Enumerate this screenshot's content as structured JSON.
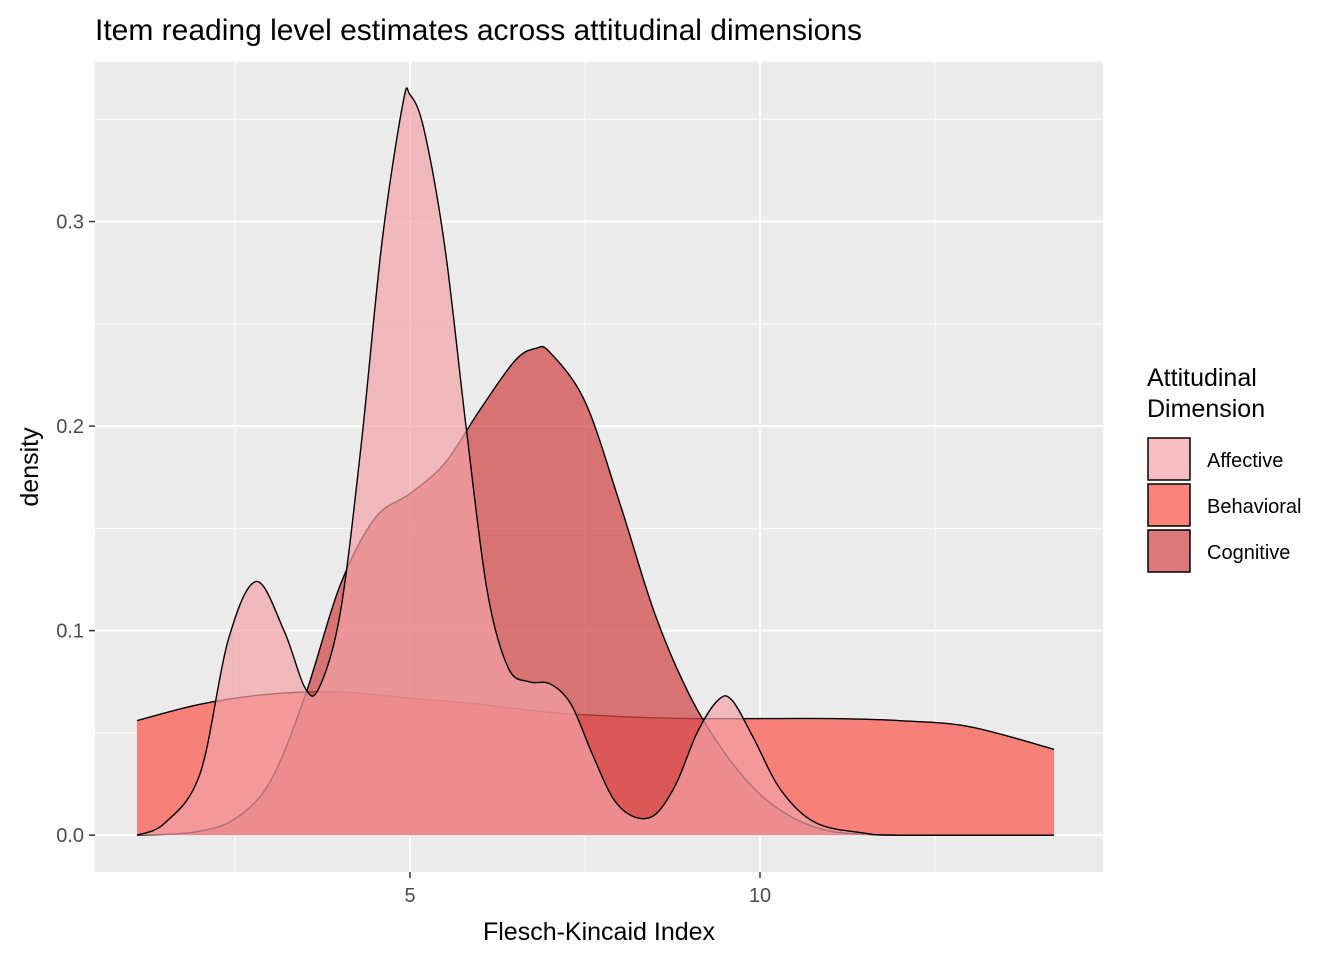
{
  "chart_data": {
    "type": "area",
    "title": "Item reading level estimates across attitudinal dimensions",
    "xlabel": "Flesch-Kincaid Index",
    "ylabel": "density",
    "xlim": [
      0.5,
      14.9
    ],
    "ylim": [
      -0.018,
      0.378
    ],
    "x_ticks": [
      5,
      10
    ],
    "x_tick_labels": [
      "5",
      "10"
    ],
    "y_ticks": [
      0.0,
      0.1,
      0.2,
      0.3
    ],
    "y_tick_labels": [
      "0.0",
      "0.1",
      "0.2",
      "0.3"
    ],
    "grid": true,
    "background_color": "#EBEBEB",
    "legend": {
      "title_lines": [
        "Attitudinal",
        "Dimension"
      ],
      "position": "right",
      "entries": [
        "Affective",
        "Behavioral",
        "Cognitive"
      ]
    },
    "series": [
      {
        "name": "Behavioral",
        "color": "#F8766D",
        "opacity": 0.9,
        "x": [
          1.1,
          2.0,
          3.0,
          4.0,
          5.0,
          6.0,
          7.0,
          8.0,
          9.0,
          10.0,
          11.0,
          12.0,
          13.0,
          14.2
        ],
        "values": [
          0.056,
          0.064,
          0.069,
          0.07,
          0.067,
          0.064,
          0.06,
          0.058,
          0.057,
          0.057,
          0.057,
          0.056,
          0.053,
          0.042
        ]
      },
      {
        "name": "Cognitive",
        "color": "#D14B4B",
        "opacity": 0.75,
        "x": [
          1.1,
          1.5,
          2.0,
          2.5,
          3.0,
          3.5,
          4.0,
          4.5,
          5.0,
          5.5,
          6.0,
          6.5,
          6.8,
          7.0,
          7.5,
          8.0,
          8.5,
          9.0,
          9.5,
          10.0,
          10.5,
          11.0,
          11.5,
          12.0,
          14.2
        ],
        "values": [
          0.0,
          0.0004,
          0.002,
          0.008,
          0.026,
          0.068,
          0.122,
          0.155,
          0.167,
          0.182,
          0.208,
          0.232,
          0.238,
          0.236,
          0.212,
          0.162,
          0.108,
          0.068,
          0.04,
          0.02,
          0.008,
          0.002,
          0.0005,
          0.0,
          0.0
        ]
      },
      {
        "name": "Affective",
        "color": "#F4A3A8",
        "opacity": 0.7,
        "x": [
          1.1,
          1.5,
          2.0,
          2.4,
          2.8,
          3.2,
          3.5,
          3.7,
          4.0,
          4.3,
          4.6,
          4.9,
          5.0,
          5.2,
          5.5,
          5.8,
          6.1,
          6.4,
          6.7,
          7.0,
          7.3,
          7.6,
          7.9,
          8.2,
          8.5,
          8.8,
          9.1,
          9.4,
          9.6,
          9.9,
          10.3,
          10.8,
          11.5,
          12.0,
          14.2
        ],
        "values": [
          0.0,
          0.006,
          0.03,
          0.095,
          0.124,
          0.1,
          0.072,
          0.072,
          0.108,
          0.19,
          0.29,
          0.358,
          0.362,
          0.345,
          0.287,
          0.2,
          0.12,
          0.082,
          0.075,
          0.074,
          0.064,
          0.04,
          0.018,
          0.009,
          0.01,
          0.025,
          0.05,
          0.066,
          0.066,
          0.048,
          0.022,
          0.006,
          0.001,
          0.0,
          0.0
        ]
      }
    ]
  }
}
